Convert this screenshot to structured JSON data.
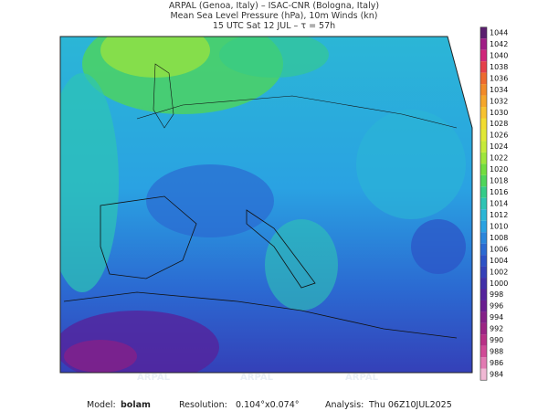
{
  "header": {
    "line1": "ARPAL (Genoa, Italy)  –  ISAC-CNR (Bologna, Italy)",
    "line2": "Mean Sea Level Pressure (hPa), 10m Winds (kn)",
    "line3": "15 UTC Sat 12 JUL  –  τ = 57h"
  },
  "colorbar": {
    "levels": [
      1044,
      1042,
      1040,
      1038,
      1036,
      1034,
      1032,
      1030,
      1028,
      1026,
      1024,
      1022,
      1020,
      1018,
      1016,
      1014,
      1012,
      1010,
      1008,
      1006,
      1004,
      1002,
      1000,
      998,
      996,
      994,
      992,
      990,
      988,
      986,
      984
    ],
    "colors": [
      "#5b1f6f",
      "#a01e86",
      "#d0267a",
      "#e5404a",
      "#ee6a2e",
      "#f28a28",
      "#f5a62a",
      "#f7c22e",
      "#f2dc30",
      "#e0e834",
      "#c6ea38",
      "#9fe63a",
      "#72dd3e",
      "#4fd55a",
      "#35cc88",
      "#2ec4b4",
      "#2bb6d6",
      "#2aa2e2",
      "#2a86dc",
      "#2b6ad2",
      "#2c52c6",
      "#3440b8",
      "#4030a8",
      "#55239c",
      "#6a1e90",
      "#842088",
      "#9c2484",
      "#b83086",
      "#d04a96",
      "#e27ab2",
      "#f0b8d4"
    ]
  },
  "watermark": "ARPAL",
  "footer": {
    "model_label": "Model:",
    "model": "bolam",
    "resolution_label": "Resolution:",
    "resolution": "0.104°x0.074°",
    "analysis_label": "Analysis:",
    "analysis": "Thu 06Z10JUL2025"
  }
}
